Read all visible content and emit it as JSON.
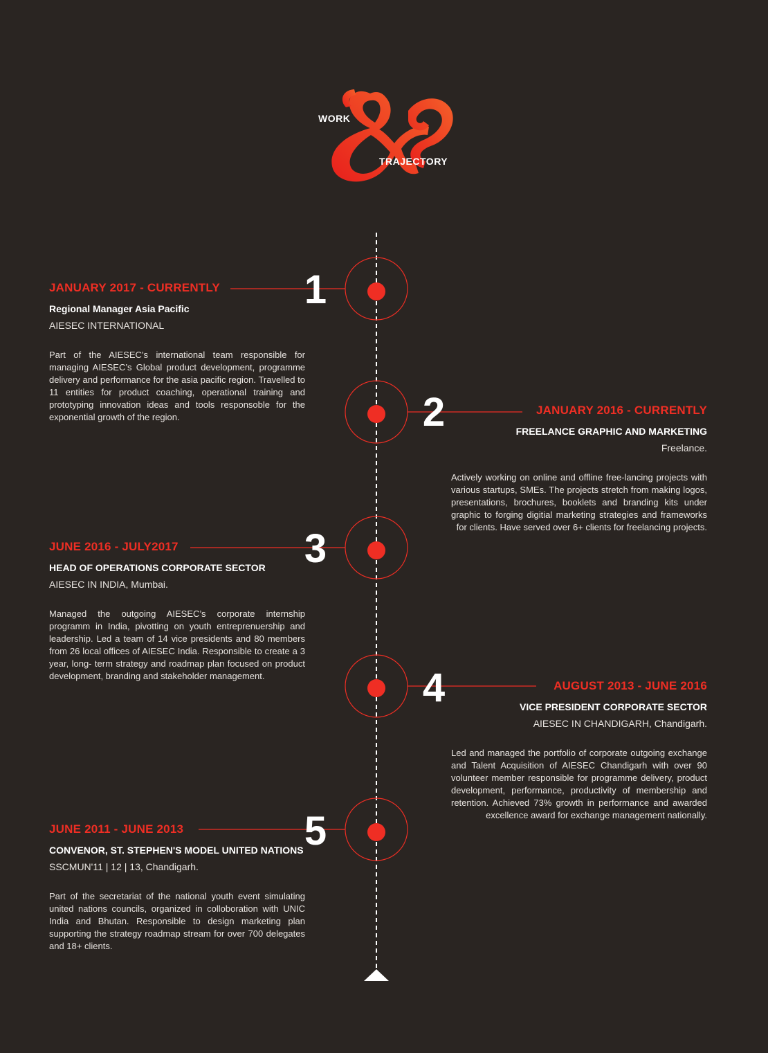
{
  "logo": {
    "word_top": "WORK",
    "word_bottom": "TRAJECTORY",
    "ampersand": "&"
  },
  "colors": {
    "background": "#2a2522",
    "accent": "#ef2e24",
    "text": "#ffffff"
  },
  "entries": [
    {
      "number": "1",
      "date": "JANUARY 2017 - CURRENTLY",
      "role": "Regional Manager Asia Pacific",
      "org": "AIESEC INTERNATIONAL",
      "description": "Part of the AIESEC’s international team responsible for managing AIESEC’s Global product development, programme delivery and performance for the asia pacific region. Travelled to 11 entities for product coaching, operational training and prototyping innovation ideas and tools responsoble for the exponential growth of the region."
    },
    {
      "number": "2",
      "date": "JANUARY 2016 - CURRENTLY",
      "role": "FREELANCE GRAPHIC AND MARKETING",
      "org": "Freelance.",
      "description": "Actively working on online and offline free-lancing projects with various startups, SMEs. The projects stretch from making logos, presentations, brochures, booklets and branding kits under graphic to forging digitial marketing strategies and frameworks for clients. Have served over 6+ clients for freelancing projects."
    },
    {
      "number": "3",
      "date": "JUNE 2016 - JULY2017",
      "role": "HEAD OF OPERATIONS CORPORATE SECTOR",
      "org": "AIESEC IN INDIA, Mumbai.",
      "description": "Managed the outgoing AIESEC’s corporate internship programm in India, pivotting on youth entreprenuership and leadership. Led a team of 14 vice presidents and 80 members from  26 local offices of AIESEC India. Responsible to create  a 3 year, long- term strategy and roadmap plan focused on product development, branding and stakeholder management."
    },
    {
      "number": "4",
      "date": "AUGUST 2013 - JUNE 2016",
      "role": "VICE PRESIDENT CORPORATE SECTOR",
      "org": "AIESEC IN CHANDIGARH, Chandigarh.",
      "description": "Led and managed the portfolio of corporate outgoing exchange and Talent Acquisition of AIESEC Chandigarh with over 90 volunteer member responsible for programme delivery, product development, performance, productivity of membership and retention.  Achieved 73% growth in performance and awarded excellence award for exchange management nationally."
    },
    {
      "number": "5",
      "date": "JUNE 2011 - JUNE 2013",
      "role": "CONVENOR, ST. STEPHEN'S MODEL UNITED NATIONS",
      "org": "SSCMUN'11 | 12 | 13, Chandigarh.",
      "description": "Part of the secretariat of the national youth event simulating united nations councils, organized in colloboration with UNIC India and Bhutan. Responsible to design marketing plan supporting the  strategy roadmap stream for over 700 delegates and 18+ clients."
    }
  ]
}
